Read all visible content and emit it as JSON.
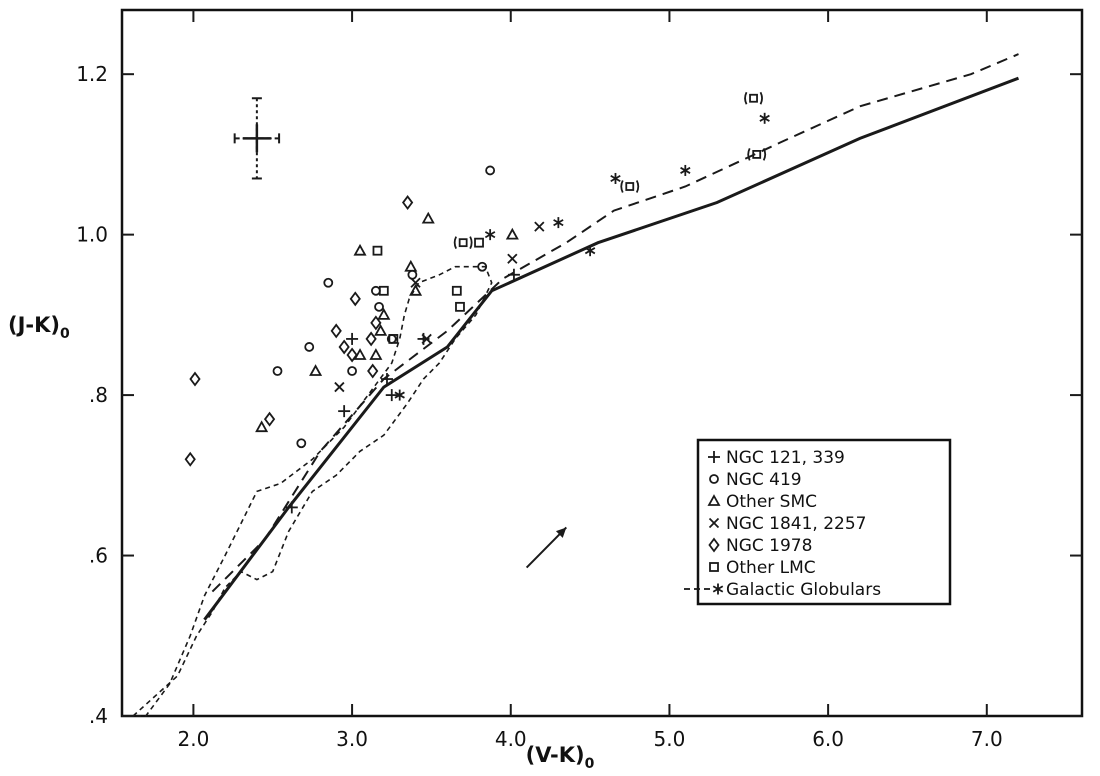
{
  "chart_data": {
    "type": "scatter",
    "xlabel": "(V-K)",
    "xlabel_sub": "0",
    "ylabel": "(J-K)",
    "ylabel_sub": "0",
    "xlim": [
      1.55,
      7.6
    ],
    "ylim": [
      0.4,
      1.28
    ],
    "xticks": [
      {
        "value": 2.0,
        "label": "2.0"
      },
      {
        "value": 3.0,
        "label": "3.0"
      },
      {
        "value": 4.0,
        "label": "4.0"
      },
      {
        "value": 5.0,
        "label": "5.0"
      },
      {
        "value": 6.0,
        "label": "6.0"
      },
      {
        "value": 7.0,
        "label": "7.0"
      }
    ],
    "yticks": [
      {
        "value": 0.4,
        "label": ".4"
      },
      {
        "value": 0.6,
        "label": ".6"
      },
      {
        "value": 0.8,
        "label": ".8"
      },
      {
        "value": 1.0,
        "label": "1.0"
      },
      {
        "value": 1.2,
        "label": "1.2"
      }
    ],
    "grid": false,
    "legend_position": "bottom-right",
    "legend": [
      {
        "symbol": "plus",
        "label": "NGC 121, 339"
      },
      {
        "symbol": "circle",
        "label": "NGC 419"
      },
      {
        "symbol": "triangle",
        "label": "Other  SMC"
      },
      {
        "symbol": "cross",
        "label": "NGC 1841, 2257"
      },
      {
        "symbol": "diamond",
        "label": "NGC 1978"
      },
      {
        "symbol": "square",
        "label": "Other LMC"
      },
      {
        "symbol": "dash-star",
        "label": "Galactic Globulars"
      }
    ],
    "series": [
      {
        "symbol": "plus",
        "points": [
          {
            "x": 3.0,
            "y": 0.87
          },
          {
            "x": 2.95,
            "y": 0.78
          },
          {
            "x": 3.22,
            "y": 0.82
          },
          {
            "x": 3.25,
            "y": 0.8
          },
          {
            "x": 2.62,
            "y": 0.66
          },
          {
            "x": 3.45,
            "y": 0.87
          },
          {
            "x": 4.02,
            "y": 0.95
          }
        ]
      },
      {
        "symbol": "circle",
        "points": [
          {
            "x": 2.53,
            "y": 0.83
          },
          {
            "x": 2.68,
            "y": 0.74
          },
          {
            "x": 2.73,
            "y": 0.86
          },
          {
            "x": 2.85,
            "y": 0.94
          },
          {
            "x": 3.0,
            "y": 0.83
          },
          {
            "x": 3.15,
            "y": 0.93
          },
          {
            "x": 3.17,
            "y": 0.91
          },
          {
            "x": 3.38,
            "y": 0.95
          },
          {
            "x": 3.82,
            "y": 0.96
          },
          {
            "x": 3.87,
            "y": 1.08
          },
          {
            "x": 3.25,
            "y": 0.87
          }
        ]
      },
      {
        "symbol": "triangle",
        "points": [
          {
            "x": 2.43,
            "y": 0.76
          },
          {
            "x": 2.77,
            "y": 0.83
          },
          {
            "x": 3.05,
            "y": 0.98
          },
          {
            "x": 3.05,
            "y": 0.85
          },
          {
            "x": 3.18,
            "y": 0.88
          },
          {
            "x": 3.2,
            "y": 0.9
          },
          {
            "x": 3.37,
            "y": 0.96
          },
          {
            "x": 3.4,
            "y": 0.93
          },
          {
            "x": 3.48,
            "y": 1.02
          },
          {
            "x": 4.01,
            "y": 1.0
          },
          {
            "x": 3.15,
            "y": 0.85
          }
        ]
      },
      {
        "symbol": "cross",
        "points": [
          {
            "x": 2.92,
            "y": 0.81
          },
          {
            "x": 3.4,
            "y": 0.94
          },
          {
            "x": 3.47,
            "y": 0.87
          },
          {
            "x": 4.01,
            "y": 0.97
          },
          {
            "x": 4.18,
            "y": 1.01
          }
        ]
      },
      {
        "symbol": "diamond",
        "points": [
          {
            "x": 1.98,
            "y": 0.72
          },
          {
            "x": 2.01,
            "y": 0.82
          },
          {
            "x": 2.48,
            "y": 0.77
          },
          {
            "x": 2.9,
            "y": 0.88
          },
          {
            "x": 2.95,
            "y": 0.86
          },
          {
            "x": 3.0,
            "y": 0.85
          },
          {
            "x": 3.02,
            "y": 0.92
          },
          {
            "x": 3.12,
            "y": 0.87
          },
          {
            "x": 3.15,
            "y": 0.89
          },
          {
            "x": 3.35,
            "y": 1.04
          },
          {
            "x": 3.13,
            "y": 0.83
          }
        ]
      },
      {
        "symbol": "square",
        "points": [
          {
            "x": 3.16,
            "y": 0.98
          },
          {
            "x": 3.26,
            "y": 0.87
          },
          {
            "x": 3.66,
            "y": 0.93
          },
          {
            "x": 3.68,
            "y": 0.91
          },
          {
            "x": 3.8,
            "y": 0.99
          },
          {
            "x": 3.2,
            "y": 0.93
          }
        ]
      },
      {
        "symbol": "bracket-square",
        "points": [
          {
            "x": 3.7,
            "y": 0.99
          },
          {
            "x": 4.75,
            "y": 1.06
          },
          {
            "x": 5.53,
            "y": 1.17
          },
          {
            "x": 5.55,
            "y": 1.1
          }
        ]
      },
      {
        "symbol": "star",
        "points": [
          {
            "x": 3.87,
            "y": 1.0
          },
          {
            "x": 4.3,
            "y": 1.015
          },
          {
            "x": 4.66,
            "y": 1.07
          },
          {
            "x": 5.1,
            "y": 1.08
          },
          {
            "x": 5.6,
            "y": 1.145
          },
          {
            "x": 4.5,
            "y": 0.98
          },
          {
            "x": 3.3,
            "y": 0.8
          }
        ]
      }
    ],
    "lines": [
      {
        "style": "solid",
        "points": [
          [
            2.07,
            0.52
          ],
          [
            2.6,
            0.66
          ],
          [
            3.2,
            0.81
          ],
          [
            3.6,
            0.86
          ],
          [
            3.88,
            0.93
          ],
          [
            4.55,
            0.99
          ],
          [
            5.3,
            1.04
          ],
          [
            6.2,
            1.12
          ],
          [
            7.2,
            1.195
          ]
        ]
      },
      {
        "style": "dashed",
        "points": [
          [
            2.12,
            0.555
          ],
          [
            2.45,
            0.62
          ],
          [
            2.8,
            0.73
          ],
          [
            3.2,
            0.82
          ],
          [
            3.6,
            0.88
          ],
          [
            3.95,
            0.945
          ],
          [
            4.35,
            0.99
          ],
          [
            4.65,
            1.03
          ],
          [
            5.1,
            1.06
          ],
          [
            5.7,
            1.115
          ],
          [
            6.2,
            1.16
          ],
          [
            6.9,
            1.2
          ],
          [
            7.2,
            1.225
          ]
        ]
      }
    ],
    "envelopes": [
      {
        "style": "short-dashed",
        "points": [
          [
            1.62,
            0.4
          ],
          [
            1.9,
            0.45
          ],
          [
            2.02,
            0.5
          ],
          [
            2.12,
            0.53
          ],
          [
            2.2,
            0.56
          ],
          [
            2.3,
            0.58
          ],
          [
            2.4,
            0.57
          ],
          [
            2.5,
            0.58
          ],
          [
            2.6,
            0.63
          ],
          [
            2.75,
            0.68
          ],
          [
            2.9,
            0.7
          ],
          [
            3.05,
            0.73
          ],
          [
            3.2,
            0.75
          ],
          [
            3.35,
            0.79
          ],
          [
            3.45,
            0.82
          ],
          [
            3.55,
            0.84
          ],
          [
            3.65,
            0.87
          ],
          [
            3.78,
            0.9
          ],
          [
            3.88,
            0.94
          ],
          [
            3.84,
            0.96
          ],
          [
            3.65,
            0.96
          ],
          [
            3.55,
            0.95
          ],
          [
            3.42,
            0.94
          ],
          [
            3.36,
            0.92
          ],
          [
            3.33,
            0.9
          ],
          [
            3.3,
            0.87
          ],
          [
            3.25,
            0.84
          ],
          [
            3.1,
            0.8
          ],
          [
            2.95,
            0.76
          ],
          [
            2.75,
            0.72
          ],
          [
            2.55,
            0.69
          ],
          [
            2.4,
            0.68
          ],
          [
            2.3,
            0.64
          ],
          [
            2.2,
            0.6
          ],
          [
            2.07,
            0.55
          ],
          [
            1.98,
            0.5
          ],
          [
            1.85,
            0.44
          ],
          [
            1.7,
            0.4
          ]
        ]
      }
    ],
    "error_bar": {
      "x": 2.4,
      "y": 1.12,
      "x_err": 0.14,
      "y_err": 0.05,
      "x_style": "dashed",
      "y_style": "dotted"
    },
    "arrow": {
      "from": [
        4.1,
        0.585
      ],
      "to": [
        4.35,
        0.635
      ]
    }
  }
}
